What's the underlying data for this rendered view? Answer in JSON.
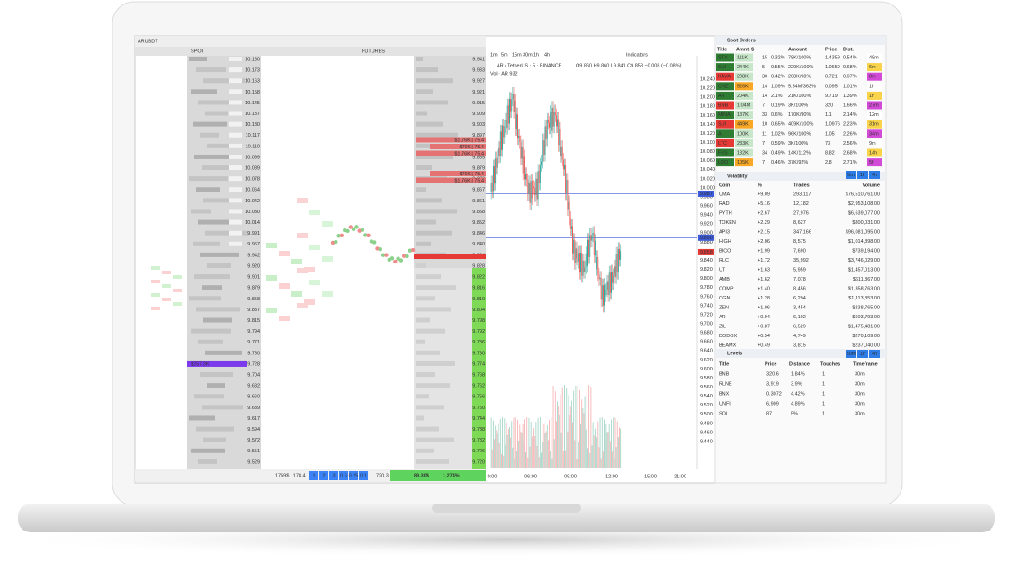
{
  "header": {
    "symbol": "ARUSDT",
    "spot": "SPOT",
    "futures": "FUTURES"
  },
  "spot": {
    "ladder": [
      "10.180",
      "10.173",
      "10.163",
      "10.158",
      "10.145",
      "10.137",
      "10.130",
      "10.117",
      "10.110",
      "10.099",
      "10.089",
      "10.078",
      "10.064",
      "10.042",
      "10.030",
      "10.014",
      "9.991",
      "9.967",
      "9.942",
      "9.920",
      "9.901",
      "9.879",
      "9.858",
      "9.837",
      "9.815",
      "9.794",
      "9.771",
      "9.750",
      "9.728",
      "9.704",
      "9.682",
      "9.660",
      "9.639",
      "9.617",
      "9.594",
      "9.572",
      "9.551",
      "9.529"
    ],
    "highlight": "$257.3K"
  },
  "futures": {
    "ladder": [
      "9.941",
      "9.933",
      "9.927",
      "9.921",
      "9.915",
      "9.909",
      "9.903",
      "9.897",
      "9.891",
      "9.885",
      "9.879",
      "9.873",
      "9.867",
      "9.861",
      "9.858",
      "9.852",
      "9.846",
      "9.840",
      "9.834",
      "9.828",
      "9.822",
      "9.816",
      "9.810",
      "9.804",
      "9.798",
      "9.792",
      "9.786",
      "9.780",
      "9.774",
      "9.768",
      "9.762",
      "9.756",
      "9.750",
      "9.744",
      "9.738",
      "9.732",
      "9.726",
      "9.720"
    ],
    "asks": [
      "$1.76K | 75.4",
      "$796 | 75.4",
      "$1.76K | 75.4",
      "$796 | 75.4",
      "$1.76K | 75.4"
    ]
  },
  "footer": {
    "volume": "1759$ | 178.4",
    "steps": [
      "1",
      "2",
      "3",
      "0.5",
      "0.25",
      "0.1"
    ],
    "size": "720.3",
    "change_usd": "89.30$",
    "change_pct": "1.274%"
  },
  "chart": {
    "timeframes": [
      "1m",
      "5m",
      "15m",
      "30m",
      "1h",
      "4h"
    ],
    "indicators": "Indicators",
    "pair": "AR / TetherUS · 5 · BINANCE",
    "ohlc": "O9.860 H9.860 L9.841 C9.858 −0.008 (−0.08%)",
    "vol": "Vol · AR 932",
    "price_axis": [
      "10.240",
      "10.220",
      "10.200",
      "10.180",
      "10.160",
      "10.140",
      "10.120",
      "10.100",
      "10.080",
      "10.060",
      "10.040",
      "10.020",
      "10.000",
      "9.980",
      "9.960",
      "9.940",
      "9.920",
      "9.900",
      "9.880",
      "9.860",
      "9.840",
      "9.820",
      "9.800",
      "9.780",
      "9.760",
      "9.740",
      "9.720",
      "9.700",
      "9.680",
      "9.660",
      "9.640",
      "9.620",
      "9.600",
      "9.580",
      "9.560",
      "9.540",
      "9.520",
      "9.500",
      "9.480",
      "9.460",
      "9.440"
    ],
    "tags": [
      "9.987",
      "9.890",
      "9.858"
    ],
    "time_axis": [
      "0:00",
      "06:00",
      "09:00",
      "12:00",
      "15:00",
      "21:00"
    ]
  },
  "spot_orders": {
    "title": "Spot Orders",
    "columns": [
      "Title",
      "Amnt, $",
      "Amount",
      "Price",
      "Dist."
    ],
    "buttons": [
      "5m",
      "1h",
      "4h"
    ],
    "rows": [
      {
        "title": "STX",
        "amount": "111K",
        "n": "15",
        "pct": "0.32%",
        "qty": "78K/100%",
        "price": "1.4359",
        "dist": "0.54%",
        "time": "48m",
        "color": "#2e7d32"
      },
      {
        "title": "SUI",
        "amount": "244K",
        "n": "5",
        "pct": "0.55%",
        "qty": "229K/100%",
        "price": "1.0659",
        "dist": "0.68%",
        "time": "6m",
        "color": "#2e7d32"
      },
      {
        "title": "KAVA",
        "amount": "208K",
        "n": "30",
        "pct": "0.42%",
        "qty": "208K/98%",
        "price": "0.721",
        "dist": "0.97%",
        "time": "8m",
        "color": "#e53935"
      },
      {
        "title": "CHZ",
        "amount": "526K",
        "n": "14",
        "pct": "1.09%",
        "qty": "5.54M/363%",
        "price": "0.095",
        "dist": "1.01%",
        "time": "1h",
        "color": "#2e7d32"
      },
      {
        "title": "AR",
        "amount": "204K",
        "n": "14",
        "pct": "2.1%",
        "qty": "21K/100%",
        "price": "9.719",
        "dist": "1.39%",
        "time": "1h",
        "color": "#2e7d32"
      },
      {
        "title": "BNB",
        "amount": "1.04M",
        "n": "7",
        "pct": "0.19%",
        "qty": "3K/100%",
        "price": "320",
        "dist": "1.66%",
        "time": "27m",
        "color": "#e53935"
      },
      {
        "title": "MINA",
        "amount": "187K",
        "n": "33",
        "pct": "0.6%",
        "qty": "170K/90%",
        "price": "1.1",
        "dist": "2.14%",
        "time": "12m",
        "color": "#2e7d32"
      },
      {
        "title": "SUI",
        "amount": "449K",
        "n": "10",
        "pct": "0.65%",
        "qty": "409K/100%",
        "price": "1.0976",
        "dist": "2.23%",
        "time": "31m",
        "color": "#e53935"
      },
      {
        "title": "AI",
        "amount": "100K",
        "n": "11",
        "pct": "1.02%",
        "qty": "96K/100%",
        "price": "1.05",
        "dist": "2.26%",
        "time": "34m",
        "color": "#2e7d32"
      },
      {
        "title": "LTC",
        "amount": "233K",
        "n": "7",
        "pct": "0.59%",
        "qty": "3K/100%",
        "price": "73",
        "dist": "2.56%",
        "time": "9m",
        "color": "#e53935"
      },
      {
        "title": "FXS",
        "amount": "132K",
        "n": "34",
        "pct": "0.49%",
        "qty": "14K/112%",
        "price": "8.82",
        "dist": "2.68%",
        "time": "14h",
        "color": "#2e7d32"
      },
      {
        "title": "LDO",
        "amount": "105K",
        "n": "7",
        "pct": "0.46%",
        "qty": "37K/92%",
        "price": "2.8",
        "dist": "2.71%",
        "time": "5h",
        "color": "#2e7d32"
      }
    ]
  },
  "volatility": {
    "title": "Volatility",
    "columns": [
      "Coin",
      "%",
      "Trades",
      "Volume"
    ],
    "rows": [
      [
        "UMA",
        "+9.09",
        "293,117",
        "$76,510,761.00"
      ],
      [
        "RAD",
        "+5.16",
        "12,182",
        "$2,953,108.00"
      ],
      [
        "PYTH",
        "+2.67",
        "27,976",
        "$6,639,077.00"
      ],
      [
        "TOKEN",
        "+2.29",
        "8,627",
        "$800,031.00"
      ],
      [
        "API3",
        "+2.15",
        "347,166",
        "$96,081,095.00"
      ],
      [
        "HIGH",
        "+2.06",
        "8,575",
        "$1,014,898.00"
      ],
      [
        "BICO",
        "+1.99",
        "7,690",
        "$739,194.00"
      ],
      [
        "RLC",
        "+1.72",
        "35,992",
        "$3,746,029.00"
      ],
      [
        "UT",
        "+1.63",
        "5,959",
        "$1,457,013.00"
      ],
      [
        "AMB",
        "+1.62",
        "7,078",
        "$611,867.00"
      ],
      [
        "COMP",
        "+1.40",
        "8,456",
        "$1,358,763.00"
      ],
      [
        "OGN",
        "+1.28",
        "6,294",
        "$1,113,853.00"
      ],
      [
        "ZEN",
        "+1.06",
        "3,454",
        "$238,765.00"
      ],
      [
        "AR",
        "+0.94",
        "6,102",
        "$603,793.00"
      ],
      [
        "ZIL",
        "+0.87",
        "6,529",
        "$1,475,481.00"
      ],
      [
        "DODOX",
        "+0.54",
        "4,749",
        "$270,109.00"
      ],
      [
        "BEAMX",
        "+0.49",
        "3,815",
        "$237,040.00"
      ]
    ]
  },
  "levels": {
    "title": "Levels",
    "buttons": [
      "30m",
      "1h",
      "4h"
    ],
    "columns": [
      "Title",
      "Price",
      "Distance",
      "Touches",
      "Timeframe"
    ],
    "rows": [
      [
        "BNB",
        "320.6",
        "1.84%",
        "1",
        "30m"
      ],
      [
        "RLNE",
        "3,919",
        "3.9%",
        "1",
        "30m"
      ],
      [
        "BNX",
        "0.3072",
        "4.42%",
        "1",
        "30m"
      ],
      [
        "UNFI",
        "6,909",
        "4.89%",
        "1",
        "30m"
      ],
      [
        "SOL",
        "87",
        "5%",
        "1",
        "30m"
      ]
    ]
  }
}
